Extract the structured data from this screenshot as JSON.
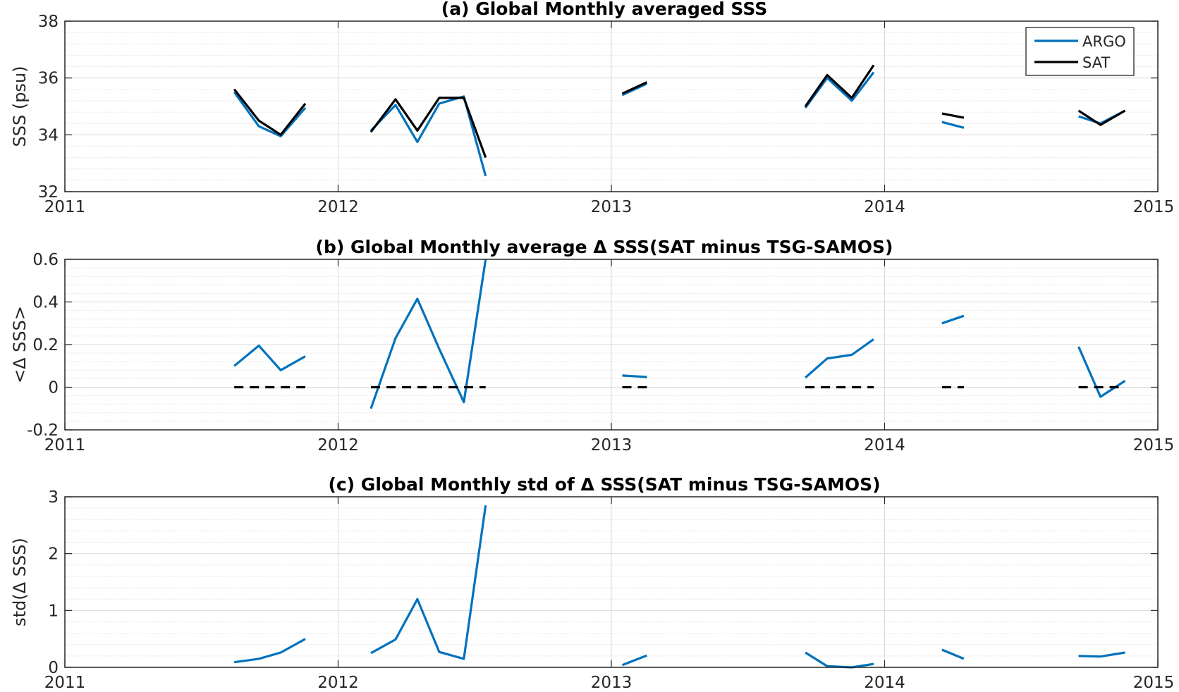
{
  "colors": {
    "argo": "#0072BD",
    "sat": "#000000",
    "grid": "#d9d9d9",
    "minor_grid": "#dddddd"
  },
  "chart_data": [
    {
      "type": "line",
      "title": "(a) Global Monthly averaged SSS",
      "xlabel": "",
      "ylabel": "SSS (psu)",
      "xlim": [
        2011,
        2015
      ],
      "ylim": [
        32,
        38
      ],
      "xticks": [
        "2011",
        "2012",
        "2013",
        "2014",
        "2015"
      ],
      "yticks": [
        "32",
        "34",
        "36",
        "38"
      ],
      "grid": "on",
      "legend": "top-right",
      "series": [
        {
          "name": "ARGO",
          "color": "argo",
          "segments": [
            [
              [
                2011.62,
                35.5
              ],
              [
                2011.71,
                34.3
              ],
              [
                2011.79,
                33.95
              ],
              [
                2011.88,
                34.95
              ]
            ],
            [
              [
                2012.12,
                34.15
              ],
              [
                2012.21,
                35.05
              ],
              [
                2012.29,
                33.75
              ],
              [
                2012.37,
                35.1
              ],
              [
                2012.46,
                35.35
              ],
              [
                2012.54,
                32.55
              ]
            ],
            [
              [
                2013.04,
                35.4
              ],
              [
                2013.13,
                35.8
              ]
            ],
            [
              [
                2013.71,
                34.95
              ],
              [
                2013.79,
                36.0
              ],
              [
                2013.88,
                35.2
              ],
              [
                2013.96,
                36.2
              ]
            ],
            [
              [
                2014.21,
                34.45
              ],
              [
                2014.29,
                34.25
              ]
            ],
            [
              [
                2014.71,
                34.65
              ],
              [
                2014.79,
                34.4
              ],
              [
                2014.88,
                34.85
              ]
            ]
          ]
        },
        {
          "name": "SAT",
          "color": "sat",
          "segments": [
            [
              [
                2011.62,
                35.6
              ],
              [
                2011.71,
                34.5
              ],
              [
                2011.79,
                34.0
              ],
              [
                2011.88,
                35.1
              ]
            ],
            [
              [
                2012.12,
                34.1
              ],
              [
                2012.21,
                35.25
              ],
              [
                2012.29,
                34.15
              ],
              [
                2012.37,
                35.3
              ],
              [
                2012.46,
                35.3
              ],
              [
                2012.54,
                33.2
              ]
            ],
            [
              [
                2013.04,
                35.45
              ],
              [
                2013.13,
                35.85
              ]
            ],
            [
              [
                2013.71,
                35.0
              ],
              [
                2013.79,
                36.1
              ],
              [
                2013.88,
                35.3
              ],
              [
                2013.96,
                36.45
              ]
            ],
            [
              [
                2014.21,
                34.75
              ],
              [
                2014.29,
                34.6
              ]
            ],
            [
              [
                2014.71,
                34.85
              ],
              [
                2014.79,
                34.35
              ],
              [
                2014.88,
                34.85
              ]
            ]
          ]
        }
      ]
    },
    {
      "type": "line",
      "title": "(b) Global Monthly average Δ SSS(SAT minus TSG-SAMOS)",
      "xlabel": "",
      "ylabel": "<Δ SSS>",
      "xlim": [
        2011,
        2015
      ],
      "ylim": [
        -0.2,
        0.6
      ],
      "xticks": [
        "2011",
        "2012",
        "2013",
        "2014",
        "2015"
      ],
      "yticks": [
        "-0.2",
        "0",
        "0.2",
        "0.4",
        "0.6"
      ],
      "grid": "on",
      "series": [
        {
          "color": "argo",
          "segments": [
            [
              [
                2011.62,
                0.1
              ],
              [
                2011.71,
                0.195
              ],
              [
                2011.79,
                0.08
              ],
              [
                2011.88,
                0.145
              ]
            ],
            [
              [
                2012.12,
                -0.1
              ],
              [
                2012.21,
                0.23
              ],
              [
                2012.29,
                0.415
              ],
              [
                2012.37,
                0.18
              ],
              [
                2012.46,
                -0.07
              ],
              [
                2012.54,
                0.6
              ]
            ],
            [
              [
                2013.04,
                0.055
              ],
              [
                2013.13,
                0.048
              ]
            ],
            [
              [
                2013.71,
                0.045
              ],
              [
                2013.79,
                0.135
              ],
              [
                2013.88,
                0.152
              ],
              [
                2013.96,
                0.225
              ]
            ],
            [
              [
                2014.21,
                0.3
              ],
              [
                2014.29,
                0.335
              ]
            ],
            [
              [
                2014.71,
                0.19
              ],
              [
                2014.79,
                -0.045
              ],
              [
                2014.88,
                0.03
              ]
            ]
          ]
        },
        {
          "color": "sat",
          "dashed": true,
          "segments": [
            [
              [
                2011.62,
                0
              ],
              [
                2011.88,
                0
              ]
            ],
            [
              [
                2012.12,
                0
              ],
              [
                2012.54,
                0
              ]
            ],
            [
              [
                2013.04,
                0
              ],
              [
                2013.13,
                0
              ]
            ],
            [
              [
                2013.71,
                0
              ],
              [
                2013.96,
                0
              ]
            ],
            [
              [
                2014.21,
                0
              ],
              [
                2014.29,
                0
              ]
            ],
            [
              [
                2014.71,
                0
              ],
              [
                2014.88,
                0
              ]
            ]
          ]
        }
      ]
    },
    {
      "type": "line",
      "title": "(c) Global Monthly std of Δ SSS(SAT minus TSG-SAMOS)",
      "xlabel": "",
      "ylabel": "std(Δ SSS)",
      "xlim": [
        2011,
        2015
      ],
      "ylim": [
        0,
        3
      ],
      "xticks": [
        "2011",
        "2012",
        "2013",
        "2014",
        "2015"
      ],
      "yticks": [
        "0",
        "1",
        "2",
        "3"
      ],
      "grid": "on",
      "series": [
        {
          "color": "argo",
          "segments": [
            [
              [
                2011.62,
                0.09
              ],
              [
                2011.71,
                0.15
              ],
              [
                2011.79,
                0.26
              ],
              [
                2011.88,
                0.5
              ]
            ],
            [
              [
                2012.12,
                0.25
              ],
              [
                2012.21,
                0.49
              ],
              [
                2012.29,
                1.2
              ],
              [
                2012.37,
                0.27
              ],
              [
                2012.46,
                0.15
              ],
              [
                2012.54,
                2.85
              ]
            ],
            [
              [
                2013.04,
                0.04
              ],
              [
                2013.13,
                0.21
              ]
            ],
            [
              [
                2013.71,
                0.26
              ],
              [
                2013.79,
                0.02
              ],
              [
                2013.88,
                0.0
              ],
              [
                2013.96,
                0.06
              ]
            ],
            [
              [
                2014.21,
                0.31
              ],
              [
                2014.29,
                0.15
              ]
            ],
            [
              [
                2014.71,
                0.2
              ],
              [
                2014.79,
                0.19
              ],
              [
                2014.88,
                0.26
              ]
            ]
          ]
        }
      ]
    }
  ]
}
